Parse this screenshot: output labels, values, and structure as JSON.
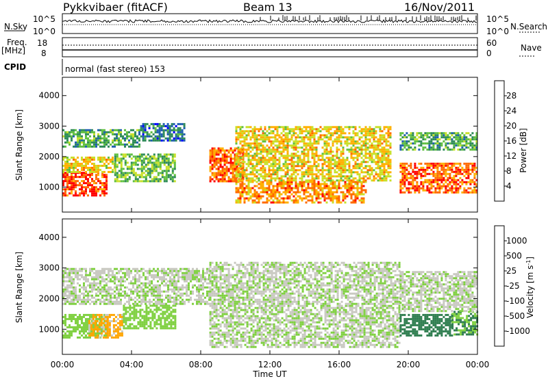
{
  "header": {
    "station": "Pykkvibaer (fitACF)",
    "beam": "Beam 13",
    "date": "16/Nov/2011"
  },
  "strip_panels": {
    "nsky_label": "N.Sky",
    "nsky_ticks": [
      "10^5",
      "10^0"
    ],
    "nsearch_label": "N.Search",
    "nsearch_ticks": [
      "10^5",
      "10^0"
    ],
    "freq_label": "Freq.",
    "freq_unit": "[MHz]",
    "freq_ticks": [
      "18",
      "8"
    ],
    "nave_label": "Nave",
    "nave_ticks": [
      "60",
      "0"
    ],
    "cpid_label": "CPID",
    "cpid_value": "normal (fast stereo) 153"
  },
  "chart_data": [
    {
      "type": "heatmap",
      "panel": "power",
      "ylabel": "Slant Range [km]",
      "xlabel": "Time UT",
      "x_ticks": [
        "00:00",
        "04:00",
        "08:00",
        "12:00",
        "16:00",
        "20:00",
        "00:00"
      ],
      "y_ticks": [
        1000,
        2000,
        3000,
        4000
      ],
      "ylim": [
        180,
        4600
      ],
      "xlim_hours": [
        0,
        24
      ],
      "colorbar": {
        "label": "Power [dB]",
        "ticks": [
          4,
          8,
          12,
          16,
          20,
          24,
          28
        ],
        "colors": [
          "#0000ff",
          "#1f5fb0",
          "#2e8b57",
          "#5fbf3f",
          "#c8e028",
          "#ffb000",
          "#ff6a00",
          "#ff0000"
        ]
      },
      "regions": [
        {
          "t": [
            0,
            2.6
          ],
          "r": [
            750,
            1500
          ],
          "level": 28
        },
        {
          "t": [
            0,
            3.0
          ],
          "r": [
            1500,
            2000
          ],
          "level": 20
        },
        {
          "t": [
            0,
            4.5
          ],
          "r": [
            2300,
            2900
          ],
          "level": 12
        },
        {
          "t": [
            3.0,
            6.5
          ],
          "r": [
            1200,
            2100
          ],
          "level": 14
        },
        {
          "t": [
            4.5,
            7.0
          ],
          "r": [
            2500,
            3100
          ],
          "level": 8
        },
        {
          "t": [
            8.5,
            10.5
          ],
          "r": [
            1200,
            2300
          ],
          "level": 26
        },
        {
          "t": [
            10.0,
            17.5
          ],
          "r": [
            500,
            1200
          ],
          "level": 24
        },
        {
          "t": [
            10.0,
            19.0
          ],
          "r": [
            1200,
            3000
          ],
          "level": 20
        },
        {
          "t": [
            19.5,
            24.0
          ],
          "r": [
            800,
            1800
          ],
          "level": 26
        },
        {
          "t": [
            19.5,
            24.0
          ],
          "r": [
            2200,
            2800
          ],
          "level": 12
        }
      ]
    },
    {
      "type": "heatmap",
      "panel": "velocity",
      "ylabel": "Slant Range [km]",
      "xlabel": "Time UT",
      "x_ticks": [
        "00:00",
        "04:00",
        "08:00",
        "12:00",
        "16:00",
        "20:00",
        "00:00"
      ],
      "y_ticks": [
        1000,
        2000,
        3000,
        4000
      ],
      "ylim": [
        180,
        4600
      ],
      "xlim_hours": [
        0,
        24
      ],
      "colorbar": {
        "label": "Velocity [m s^-1]",
        "ticks": [
          1000,
          500,
          25,
          -25,
          -100,
          -500,
          -1000
        ],
        "colors": [
          "#1c3fbf",
          "#2e7d4f",
          "#7fd040",
          "#c8c8c0",
          "#c8c8c0",
          "#ffa500",
          "#ff6000",
          "#ff0000"
        ]
      },
      "regions": [
        {
          "t": [
            0,
            2.5
          ],
          "r": [
            700,
            1500
          ],
          "vel": 300
        },
        {
          "t": [
            1.5,
            3.5
          ],
          "r": [
            700,
            1500
          ],
          "vel": -150
        },
        {
          "t": [
            3.5,
            6.5
          ],
          "r": [
            1000,
            1800
          ],
          "vel": 300
        },
        {
          "t": [
            0,
            8.5
          ],
          "r": [
            1800,
            3000
          ],
          "vel": 0
        },
        {
          "t": [
            8.5,
            19.5
          ],
          "r": [
            400,
            3200
          ],
          "vel": 0
        },
        {
          "t": [
            19.5,
            22.5
          ],
          "r": [
            800,
            1500
          ],
          "vel": 900
        },
        {
          "t": [
            22.5,
            24.0
          ],
          "r": [
            800,
            1600
          ],
          "vel": 500
        },
        {
          "t": [
            19.5,
            24.0
          ],
          "r": [
            1600,
            2900
          ],
          "vel": 0
        }
      ]
    }
  ]
}
